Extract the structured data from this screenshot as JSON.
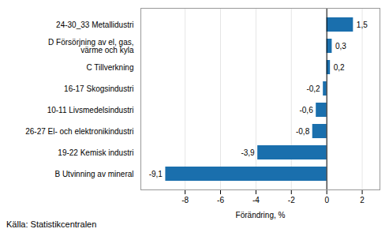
{
  "chart_data": {
    "type": "bar",
    "orientation": "horizontal",
    "categories": [
      "B Utvinning av mineral",
      "19-22 Kemisk industri",
      "26-27 El- och elektronikindustri",
      "10-11 Livsmedelsindustri",
      "16-17 Skogsindustri",
      "C Tillverkning",
      "D Försörjning av el, gas,\nvärme och kyla",
      "24-30_33 Metallidustri"
    ],
    "values": [
      -9.1,
      -3.9,
      -0.8,
      -0.6,
      -0.2,
      0.2,
      0.3,
      1.5
    ],
    "value_labels": [
      "-9,1",
      "-3,9",
      "-0,8",
      "-0,6",
      "-0,2",
      "0,2",
      "0,3",
      "1,5"
    ],
    "data_labels": true,
    "color": "#1a6fad",
    "xlim": [
      -10.5,
      3.0
    ],
    "xticks": [
      -8,
      -6,
      -4,
      -2,
      0,
      2
    ],
    "xlabel": "Förändring, %",
    "source": "Källa: Statistikcentralen",
    "grid": true
  }
}
